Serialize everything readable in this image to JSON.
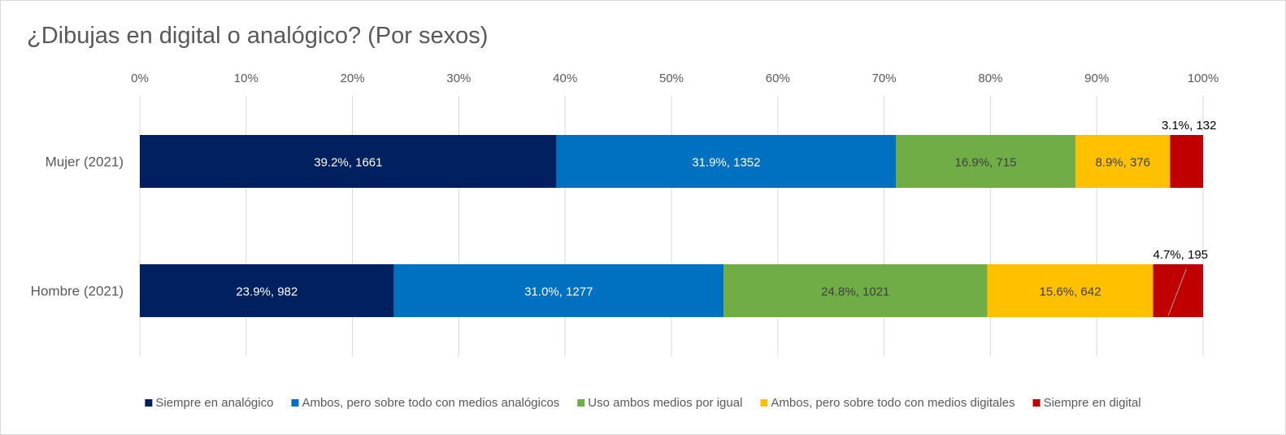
{
  "chart_data": {
    "type": "bar",
    "orientation": "horizontal",
    "stacked": "percent",
    "title": "¿Dibujas en digital o analógico? (Por sexos)",
    "categories": [
      "Mujer (2021)",
      "Hombre (2021)"
    ],
    "xlim": [
      0,
      100
    ],
    "x_ticks": [
      "0%",
      "10%",
      "20%",
      "30%",
      "40%",
      "50%",
      "60%",
      "70%",
      "80%",
      "90%",
      "100%"
    ],
    "grid": true,
    "legend_position": "bottom",
    "series": [
      {
        "name": "Siempre en analógico",
        "color": "#002060",
        "label_color": "#ffffff",
        "percent": [
          39.2,
          23.9
        ],
        "count": [
          1661,
          982
        ],
        "labels": [
          "39.2%, 1661",
          "23.9%, 982"
        ]
      },
      {
        "name": "Ambos, pero sobre todo con medios analógicos",
        "color": "#0070c0",
        "label_color": "#ffffff",
        "percent": [
          31.9,
          31.0
        ],
        "count": [
          1352,
          1277
        ],
        "labels": [
          "31.9%, 1352",
          "31.0%, 1277"
        ]
      },
      {
        "name": "Uso ambos medios por igual",
        "color": "#70ad47",
        "label_color": "#404040",
        "percent": [
          16.9,
          24.8
        ],
        "count": [
          715,
          1021
        ],
        "labels": [
          "16.9%, 715",
          "24.8%, 1021"
        ]
      },
      {
        "name": "Ambos, pero sobre todo con medios digitales",
        "color": "#ffc000",
        "label_color": "#404040",
        "percent": [
          8.9,
          15.6
        ],
        "count": [
          376,
          642
        ],
        "labels": [
          "8.9%, 376",
          "15.6%, 642"
        ]
      },
      {
        "name": "Siempre en digital",
        "color": "#c00000",
        "label_color": "#000000",
        "percent": [
          3.1,
          4.7
        ],
        "count": [
          132,
          195
        ],
        "labels": [
          "3.1%, 132",
          "4.7%, 195"
        ]
      }
    ]
  }
}
